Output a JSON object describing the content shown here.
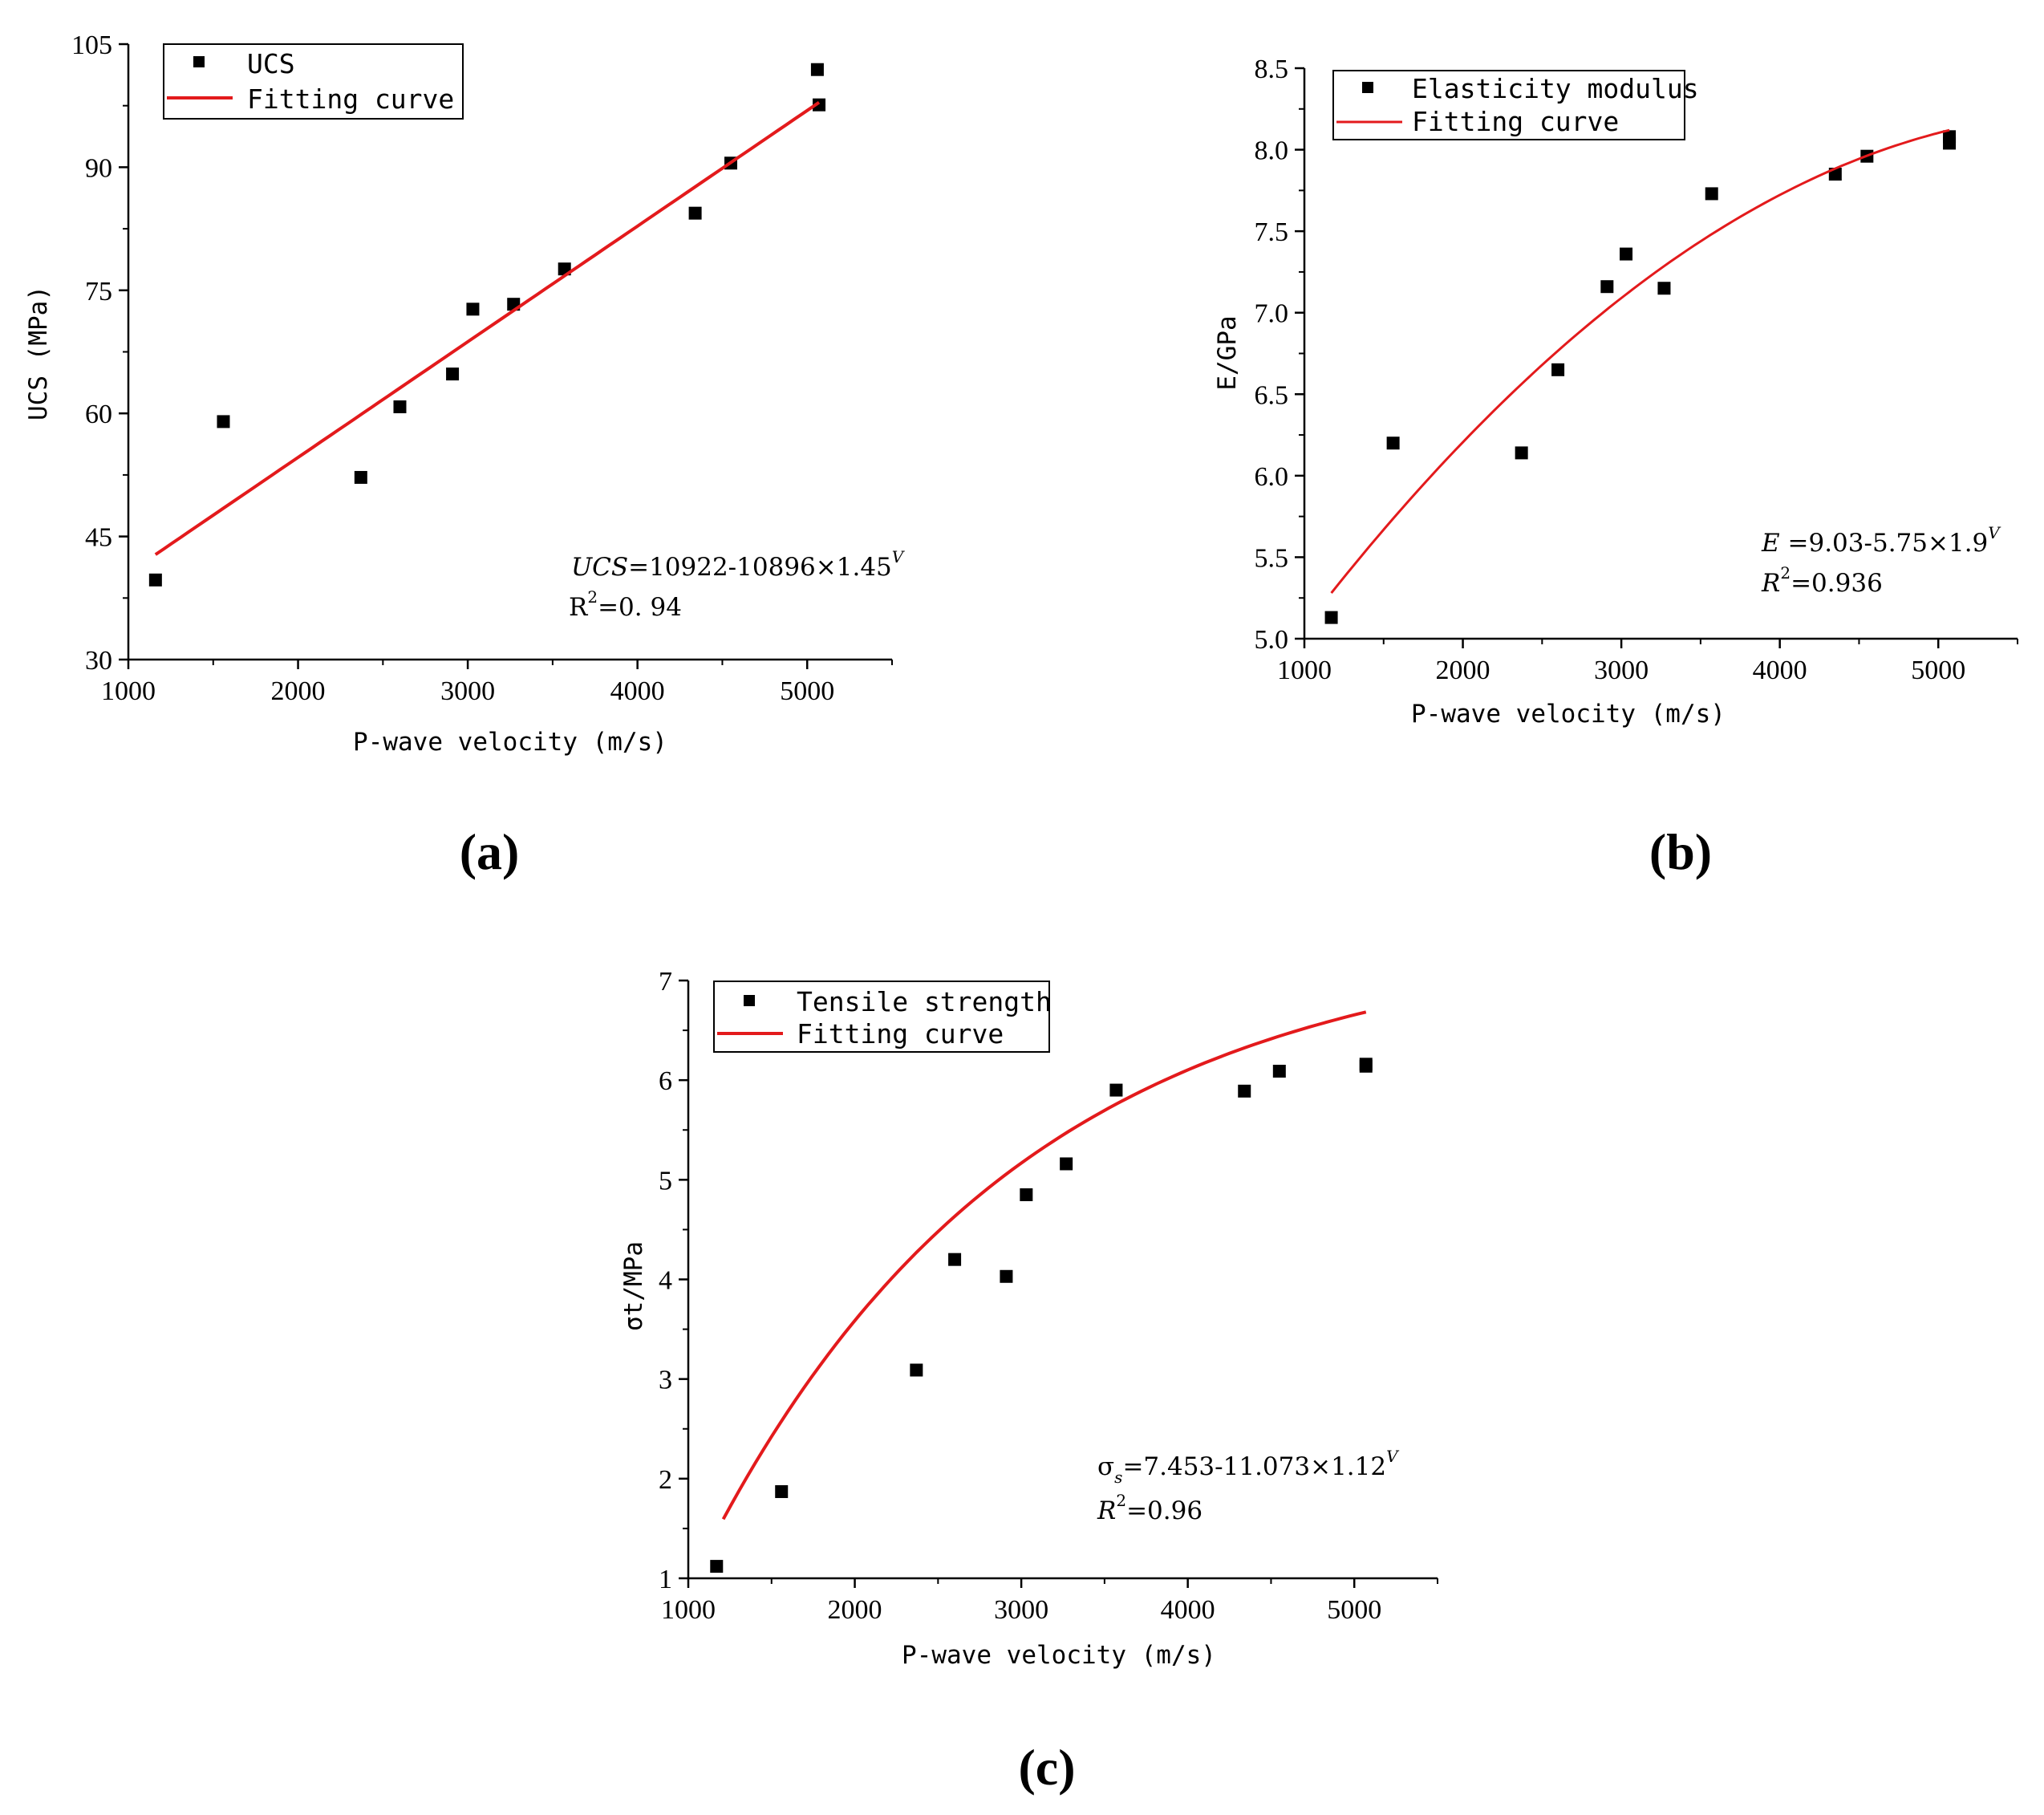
{
  "chart_data": [
    {
      "id": "a",
      "type": "scatter",
      "panel_label": "(a)",
      "xlabel": "P-wave velocity (m/s)",
      "ylabel": "UCS (MPa)",
      "xlim": [
        1000,
        5500
      ],
      "ylim": [
        30,
        105
      ],
      "xticks": [
        1000,
        2000,
        3000,
        4000,
        5000
      ],
      "yticks": [
        30,
        45,
        60,
        75,
        90,
        105
      ],
      "legend": {
        "location": "top-left",
        "marker_label": "UCS",
        "line_label": "Fitting curve"
      },
      "points": [
        [
          1160,
          39.7
        ],
        [
          1560,
          59.0
        ],
        [
          2370,
          52.2
        ],
        [
          2600,
          60.8
        ],
        [
          2910,
          64.8
        ],
        [
          3030,
          72.7
        ],
        [
          3270,
          73.3
        ],
        [
          3570,
          77.6
        ],
        [
          4340,
          84.4
        ],
        [
          4550,
          90.5
        ],
        [
          5060,
          101.9
        ],
        [
          5070,
          97.6
        ]
      ],
      "fit": {
        "model": "linear",
        "x_range": [
          1160,
          5070
        ],
        "y_start": 42.8,
        "y_end": 97.9
      },
      "equation": {
        "lhs": "UCS",
        "rhs": "=10922-10896×1.45",
        "exp": "V"
      },
      "r2": {
        "label": "R",
        "sup": "2",
        "value": "=0. 94"
      }
    },
    {
      "id": "b",
      "type": "scatter",
      "panel_label": "(b)",
      "xlabel": "P-wave velocity (m/s)",
      "ylabel": "E/GPa",
      "xlim": [
        1000,
        5500
      ],
      "ylim": [
        5.0,
        8.5
      ],
      "xticks": [
        1000,
        2000,
        3000,
        4000,
        5000
      ],
      "yticks": [
        5.0,
        5.5,
        6.0,
        6.5,
        7.0,
        7.5,
        8.0,
        8.5
      ],
      "legend": {
        "location": "top-left",
        "marker_label": "Elasticity modulus",
        "line_label": "Fitting curve"
      },
      "points": [
        [
          1170,
          5.13
        ],
        [
          1560,
          6.2
        ],
        [
          2370,
          6.14
        ],
        [
          2600,
          6.65
        ],
        [
          2910,
          7.16
        ],
        [
          3030,
          7.36
        ],
        [
          3270,
          7.15
        ],
        [
          3570,
          7.73
        ],
        [
          4350,
          7.85
        ],
        [
          4550,
          7.96
        ],
        [
          5070,
          8.08
        ],
        [
          5070,
          8.04
        ]
      ],
      "fit": {
        "model": "quadratic",
        "x_range": [
          1170,
          5070
        ],
        "points": [
          [
            1170,
            5.28
          ],
          [
            3000,
            7.09
          ],
          [
            5070,
            8.12
          ]
        ]
      },
      "equation": {
        "lhs": "E",
        "rhs": " =9.03-5.75×1.9",
        "exp": "V"
      },
      "r2": {
        "label": "R",
        "sup": "2",
        "value": "=0.936"
      }
    },
    {
      "id": "c",
      "type": "scatter",
      "panel_label": "(c)",
      "xlabel": "P-wave velocity (m/s)",
      "ylabel": "σt/MPa",
      "xlim": [
        1000,
        5500
      ],
      "ylim": [
        1,
        7
      ],
      "xticks": [
        1000,
        2000,
        3000,
        4000,
        5000
      ],
      "yticks": [
        1,
        2,
        3,
        4,
        5,
        6,
        7
      ],
      "legend": {
        "location": "top-left",
        "marker_label": "Tensile strength",
        "line_label": "Fitting curve"
      },
      "points": [
        [
          1170,
          1.12
        ],
        [
          1560,
          1.87
        ],
        [
          2370,
          3.09
        ],
        [
          2600,
          4.2
        ],
        [
          2910,
          4.03
        ],
        [
          3030,
          4.85
        ],
        [
          3270,
          5.16
        ],
        [
          3570,
          5.9
        ],
        [
          4340,
          5.89
        ],
        [
          4550,
          6.09
        ],
        [
          5070,
          6.16
        ],
        [
          5070,
          6.14
        ]
      ],
      "fit": {
        "model": "exp-saturation",
        "x_range": [
          1210,
          5070
        ],
        "A": 7.453,
        "B": 11.073,
        "k": 0.000526
      },
      "equation": {
        "lhs": "σ",
        "lhs_sub": "s",
        "rhs": "=7.453-11.073×1.12",
        "exp": "V"
      },
      "r2": {
        "label": "R",
        "sup": "2",
        "value": "=0.96"
      }
    }
  ],
  "style": {
    "marker_color": "#000000",
    "fit_color": "#e31a1c"
  }
}
